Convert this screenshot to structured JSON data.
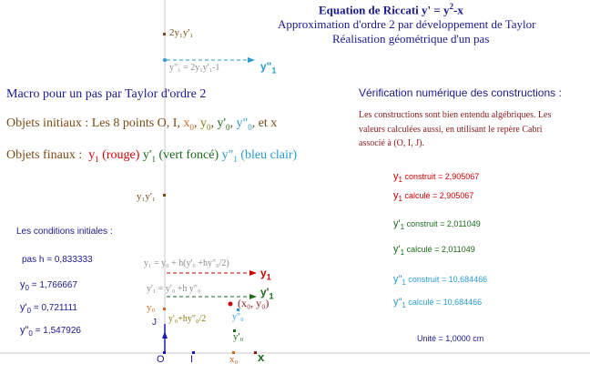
{
  "title": {
    "prefix": "Equation de Riccati  y' = y",
    "exp": "2",
    "suffix": "-x",
    "line2": "Approximation d'ordre 2 par développement de Taylor",
    "line3": "Réalisation géométrique d'un pas"
  },
  "left": {
    "macro": "Macro pour un pas par Taylor d'ordre 2",
    "initial": {
      "label": "Objets initiaux :",
      "text": "Les 8 points O, I,",
      "x0_a": "x",
      "x0_b": "0",
      "comma1": ",",
      "y0_a": "y",
      "y0_b": "0",
      "comma2": ",",
      "yp0_a": "y'",
      "yp0_b": "0",
      "comma3": ",",
      "ypp0_a": "y\"",
      "ypp0_b": "0",
      "end": ", et x"
    },
    "final": {
      "label": "Objets finaux :",
      "y1_a": "y",
      "y1_b": "1",
      "y1_c": "(rouge)",
      "yp1_a": "y'",
      "yp1_b": "1",
      "yp1_c": "(vert foncé)",
      "ypp1_a": "y\"",
      "ypp1_b": "1",
      "ypp1_c": "(bleu clair)"
    },
    "conditions_title": "Les conditions initiales :",
    "pas": "pas h = 0,833333",
    "y0": {
      "a": "y",
      "b": "0",
      "c": " = 1,766667"
    },
    "yp0": {
      "a": "y'",
      "b": "0",
      "c": " = 0,721111"
    },
    "ypp0": {
      "a": "y\"",
      "b": "0",
      "c": " = 1,547926"
    }
  },
  "right": {
    "heading": "Vérification numérique des constructions :",
    "p1": "Les constructions sont bien entendu algébriques. Les",
    "p2": "valeurs calculées aussi, en utilisant le repère Cabri",
    "p3": "associé à (O, I, J).",
    "rows": [
      {
        "a": "y",
        "b": "1",
        "c": " construit = 2,905067"
      },
      {
        "a": "y",
        "b": "1",
        "c": " calculé = 2,905067"
      },
      {
        "a": "y'",
        "b": "1",
        "c": " construit = 2,011049"
      },
      {
        "a": "y'",
        "b": "1",
        "c": " calculé =  2,011049"
      },
      {
        "a": "y\"",
        "b": "1",
        "c": " construit = 10,684466"
      },
      {
        "a": "y\"",
        "b": "1",
        "c": " calculé =  10,684466"
      }
    ],
    "unite": "Unité = 1,0000 cm"
  },
  "figure": {
    "lbl_2y1": "2y₁y'₁",
    "lbl_ypp1eq": "y\"₁ = 2y₁y'₁-1",
    "lbl_ypp1": "y\"",
    "lbl_ypp1_sub": "1",
    "lbl_y1yp1": "y₁y'₁",
    "lbl_y1eq": "y₁ = y₀ + h(y'₀ +hy\"₀/2)",
    "lbl_y1": "y",
    "lbl_y1_sub": "1",
    "lbl_yp1eq": "y'₁ = y'₀ +h y\"₀",
    "lbl_yp1": "y'",
    "lbl_yp1_sub": "1",
    "lbl_x0y0": "(x₀, y₀)",
    "lbl_y0": "y₀",
    "lbl_J": "J",
    "lbl_yp0h": "y'₀+hy\"₀/2",
    "lbl_ypp0": "y\"₀",
    "lbl_yp0": "y'₀",
    "lbl_O": "O",
    "lbl_I": "I",
    "lbl_x0": "x₀",
    "lbl_x": "x"
  },
  "colors": {
    "navy": "#1a1a8c",
    "red": "#cc0000",
    "green": "#1a6a1a",
    "sky": "#2a9ad0",
    "blue": "#1a1ab0",
    "orange": "#d2691e",
    "olive": "#8a7a10",
    "brown": "#7a4a14"
  }
}
